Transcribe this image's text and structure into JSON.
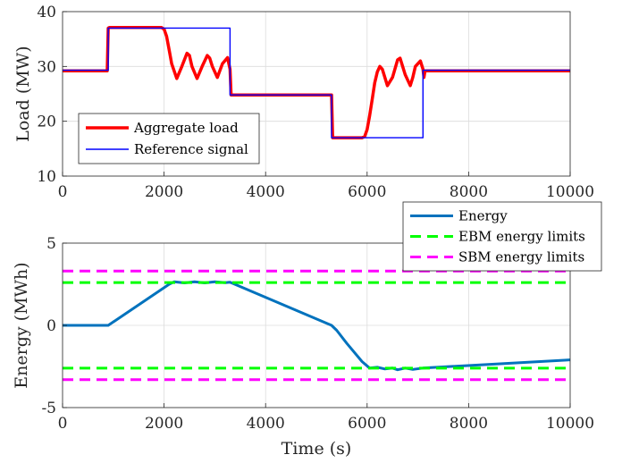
{
  "chart_data": [
    {
      "type": "line",
      "xlabel": "",
      "ylabel": "Load (MW)",
      "xlim": [
        0,
        10000
      ],
      "ylim": [
        10,
        40
      ],
      "xticks": [
        "0",
        "2000",
        "4000",
        "6000",
        "8000",
        "10000"
      ],
      "yticks": [
        "10",
        "20",
        "30",
        "40"
      ],
      "grid": true,
      "legend_position": "lower-left",
      "series": [
        {
          "name": "Aggregate load",
          "color": "#ff0000",
          "x": [
            0,
            880,
            900,
            920,
            1000,
            1500,
            1950,
            2000,
            2050,
            2100,
            2150,
            2250,
            2350,
            2450,
            2500,
            2550,
            2650,
            2750,
            2850,
            2900,
            2950,
            3050,
            3150,
            3250,
            3300,
            3320,
            3500,
            4000,
            4500,
            5000,
            5300,
            5320,
            5340,
            5400,
            5700,
            5900,
            5950,
            6000,
            6050,
            6100,
            6150,
            6200,
            6250,
            6300,
            6400,
            6500,
            6600,
            6650,
            6750,
            6850,
            6900,
            6950,
            7050,
            7100,
            7120,
            7140,
            7500,
            8000,
            9000,
            10000
          ],
          "y": [
            29.2,
            29.2,
            37.0,
            37.1,
            37.1,
            37.1,
            37.1,
            36.8,
            35.5,
            33.0,
            30.5,
            27.8,
            30.0,
            32.4,
            32.0,
            30.0,
            27.8,
            30.0,
            32.0,
            31.5,
            30.0,
            28.0,
            30.5,
            31.6,
            29.5,
            24.8,
            24.8,
            24.8,
            24.8,
            24.8,
            24.8,
            17.0,
            17.0,
            17.0,
            17.0,
            17.0,
            17.2,
            18.5,
            21.0,
            24.0,
            27.0,
            29.0,
            30.0,
            29.5,
            26.5,
            28.0,
            31.2,
            31.5,
            28.5,
            26.5,
            28.0,
            30.0,
            31.0,
            29.5,
            28.0,
            29.2,
            29.2,
            29.2,
            29.2,
            29.2
          ]
        },
        {
          "name": "Reference signal",
          "color": "#0000ff",
          "x": [
            0,
            900,
            900,
            3300,
            3300,
            5300,
            5300,
            7100,
            7100,
            10000
          ],
          "y": [
            29.3,
            29.3,
            37.0,
            37.0,
            24.8,
            24.8,
            17.0,
            17.0,
            29.3,
            29.3
          ]
        }
      ]
    },
    {
      "type": "line",
      "xlabel": "Time (s)",
      "ylabel": "Energy (MWh)",
      "xlim": [
        0,
        10000
      ],
      "ylim": [
        -5,
        5
      ],
      "xticks": [
        "0",
        "2000",
        "4000",
        "6000",
        "8000",
        "10000"
      ],
      "yticks": [
        "-5",
        "0",
        "5"
      ],
      "grid": true,
      "legend_position": "top-right",
      "series": [
        {
          "name": "Energy",
          "color": "#0072bd",
          "x": [
            0,
            900,
            2100,
            2200,
            2400,
            2600,
            2800,
            3000,
            3200,
            3300,
            5300,
            5400,
            5600,
            5900,
            6050,
            6200,
            6350,
            6500,
            6600,
            6750,
            6900,
            7100,
            10000
          ],
          "y": [
            0,
            0,
            2.5,
            2.65,
            2.58,
            2.65,
            2.58,
            2.65,
            2.6,
            2.62,
            0,
            -0.3,
            -1.1,
            -2.2,
            -2.6,
            -2.55,
            -2.65,
            -2.6,
            -2.7,
            -2.6,
            -2.68,
            -2.6,
            -2.1
          ]
        },
        {
          "name": "EBM energy limits",
          "color": "#00ff00",
          "dashed": true,
          "x": [
            0,
            10000
          ],
          "y_upper": 2.6,
          "y_lower": -2.6
        },
        {
          "name": "SBM energy limits",
          "color": "#ff00ff",
          "dashed": true,
          "x": [
            0,
            10000
          ],
          "y_upper": 3.3,
          "y_lower": -3.3
        }
      ]
    }
  ]
}
